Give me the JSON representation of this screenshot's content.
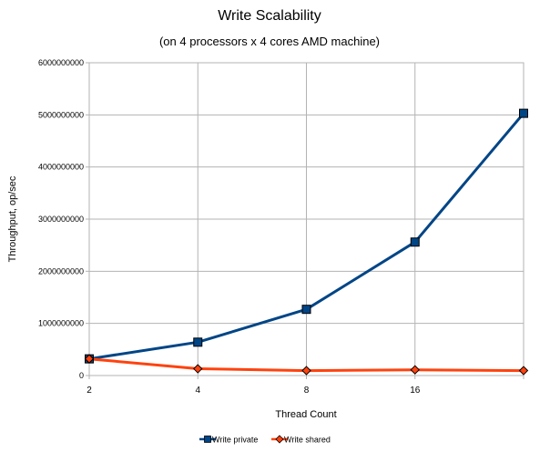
{
  "chart_data": {
    "type": "line",
    "title": "Write Scalability",
    "subtitle": "(on 4 processors x 4 cores AMD machine)",
    "xlabel": "Thread Count",
    "ylabel": "Throughput, op/sec",
    "categories": [
      "2",
      "4",
      "8",
      "16",
      ""
    ],
    "ylim": [
      0,
      6000000000
    ],
    "yticks": [
      "0",
      "1000000000",
      "2000000000",
      "3000000000",
      "4000000000",
      "5000000000",
      "6000000000"
    ],
    "grid": true,
    "legend": "bottom-center",
    "series": [
      {
        "name": "Write private",
        "color": "#004586",
        "marker": "square",
        "values": [
          320000000,
          640000000,
          1270000000,
          2560000000,
          5030000000
        ]
      },
      {
        "name": "Write shared",
        "color": "#ff420e",
        "marker": "diamond",
        "values": [
          320000000,
          130000000,
          95000000,
          110000000,
          95000000
        ]
      }
    ]
  }
}
